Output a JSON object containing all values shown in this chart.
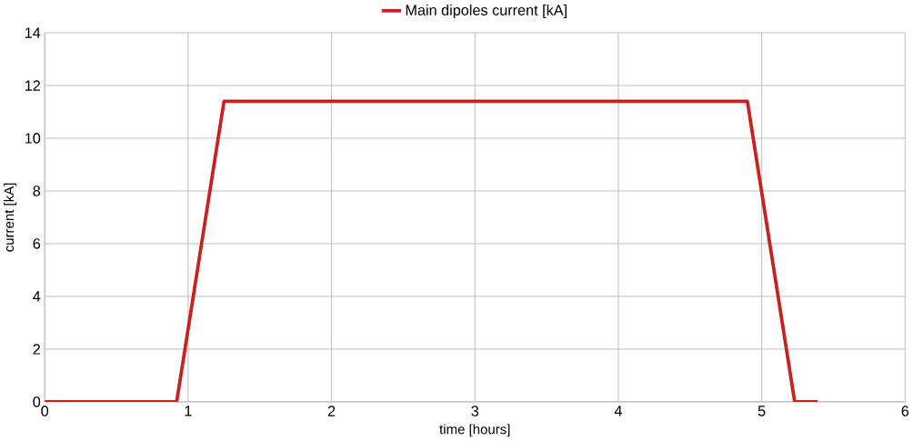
{
  "chart_data": {
    "type": "line",
    "xlabel": "time [hours]",
    "ylabel": "current [kA]",
    "series": [
      {
        "name": "Main dipoles current [kA]",
        "color": "#c9211e",
        "x": [
          0,
          0.92,
          1.25,
          4.9,
          5.23,
          5.39
        ],
        "values": [
          0,
          0,
          11.4,
          11.4,
          0,
          0
        ]
      }
    ],
    "xlim": [
      0,
      6
    ],
    "xticks": [
      0,
      1,
      2,
      3,
      4,
      5,
      6
    ],
    "ylim": [
      0,
      14
    ],
    "yticks": [
      0,
      2,
      4,
      6,
      8,
      10,
      12,
      14
    ],
    "grid": true,
    "legend": "top",
    "marker": "none",
    "line_style": "solid"
  }
}
